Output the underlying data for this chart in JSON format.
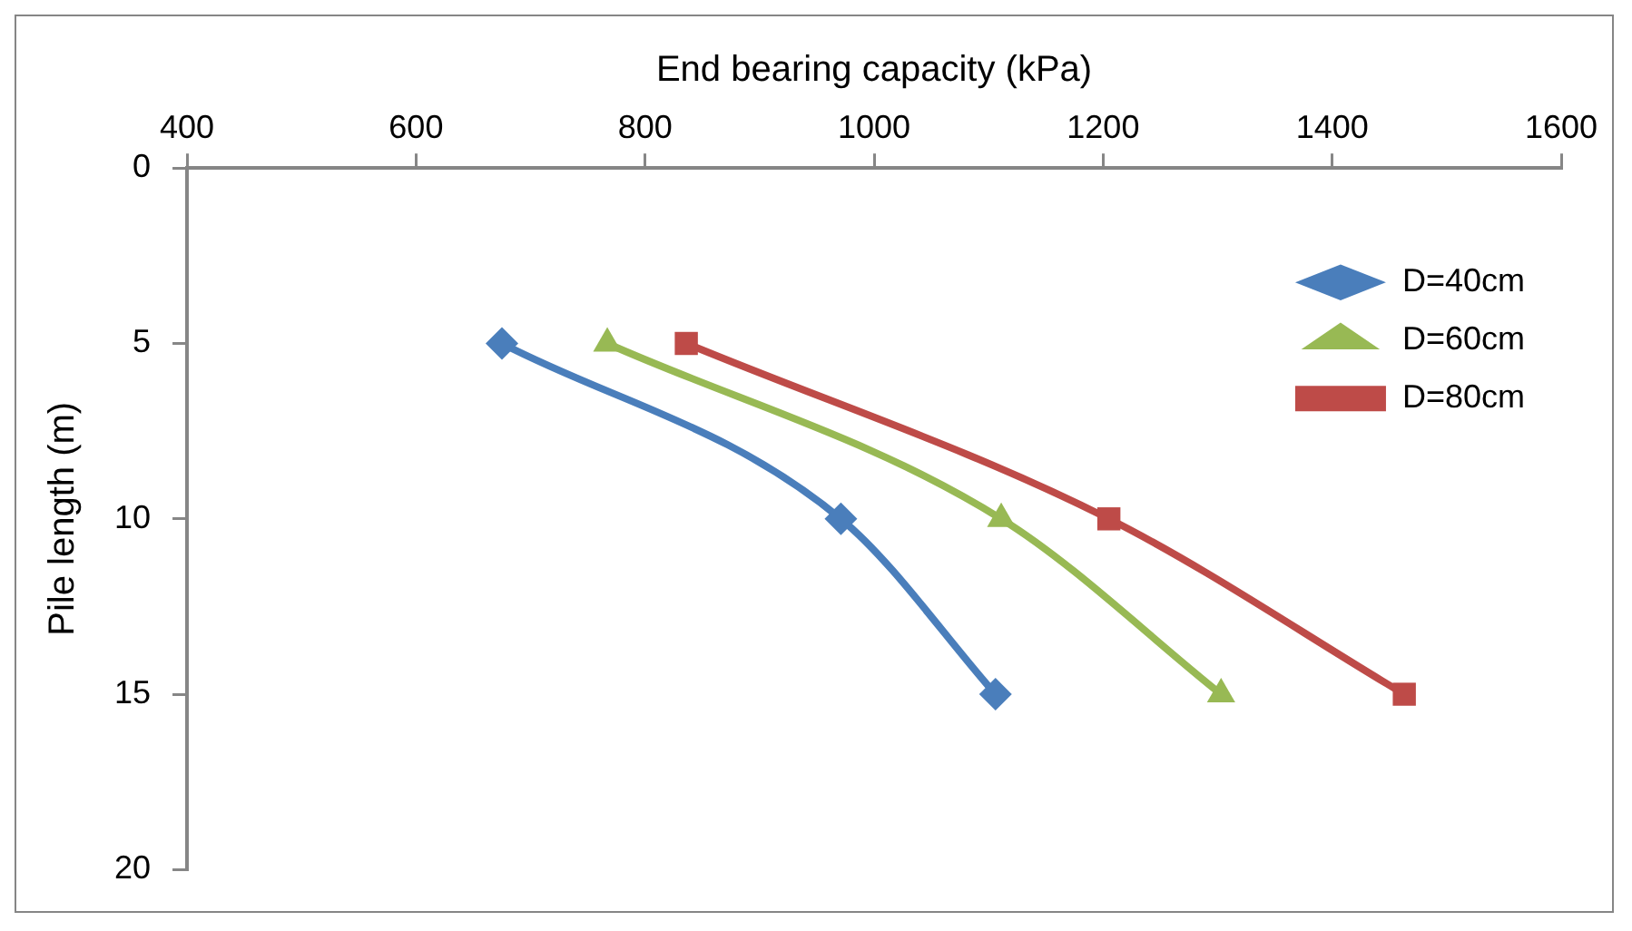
{
  "chart_data": {
    "type": "line",
    "xlabel": "End bearing capacity (kPa)",
    "ylabel": "Pile length (m)",
    "xlim": [
      400,
      1600
    ],
    "xticks": [
      400,
      600,
      800,
      1000,
      1200,
      1400,
      1600
    ],
    "ylim": [
      20,
      0
    ],
    "yticks": [
      0,
      5,
      10,
      15,
      20
    ],
    "grid": false,
    "legend": "top right",
    "series": [
      {
        "name": "D=40cm",
        "color": "#4a7ebb",
        "marker": "diamond",
        "x": [
          675,
          971,
          1106
        ],
        "values": [
          5,
          10,
          15
        ]
      },
      {
        "name": "D=60cm",
        "color": "#98b954",
        "marker": "triangle",
        "x": [
          767,
          1111,
          1303
        ],
        "values": [
          5,
          10,
          15
        ]
      },
      {
        "name": "D=80cm",
        "color": "#be4b48",
        "marker": "square",
        "x": [
          836,
          1205,
          1463
        ],
        "values": [
          5,
          10,
          15
        ]
      }
    ]
  }
}
